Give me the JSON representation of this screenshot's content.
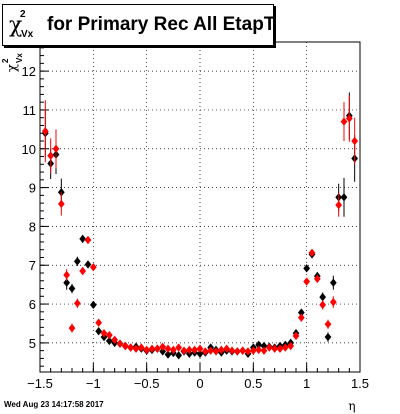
{
  "title": {
    "symbol": "χ",
    "superscript": "2",
    "subscript": "Vx",
    "text": "for Primary Rec All EtapT"
  },
  "footer": "Wed Aug 23 14:17:58 2017",
  "colors": {
    "series_black": "#000000",
    "series_red": "#ff0000",
    "grid": "#000000",
    "background": "#ffffff"
  },
  "chart_data": {
    "type": "scatter",
    "title": "χ2 Vx for Primary Rec All EtapT",
    "xlabel": "η",
    "ylabel": "χ2 Vx",
    "xlim": [
      -1.5,
      1.5
    ],
    "ylim": [
      4.25,
      12.75
    ],
    "xticks": [
      -1.5,
      -1,
      -0.5,
      0,
      0.5,
      1,
      1.5
    ],
    "xtick_labels": [
      "−1.5",
      "−1",
      "−0.5",
      "0",
      "0.5",
      "1",
      "1.5"
    ],
    "yticks": [
      5,
      6,
      7,
      8,
      9,
      10,
      11,
      12
    ],
    "ytick_labels": [
      "5",
      "6",
      "7",
      "8",
      "9",
      "10",
      "11",
      "12"
    ],
    "grid": true,
    "series": [
      {
        "color": "#000000",
        "x": [
          -1.45,
          -1.4,
          -1.35,
          -1.3,
          -1.25,
          -1.2,
          -1.15,
          -1.1,
          -1.05,
          -1.0,
          -0.95,
          -0.9,
          -0.85,
          -0.8,
          -0.75,
          -0.7,
          -0.65,
          -0.6,
          -0.55,
          -0.5,
          -0.45,
          -0.4,
          -0.35,
          -0.3,
          -0.25,
          -0.2,
          -0.15,
          -0.1,
          -0.05,
          0.0,
          0.05,
          0.1,
          0.15,
          0.2,
          0.25,
          0.3,
          0.35,
          0.4,
          0.45,
          0.5,
          0.55,
          0.6,
          0.65,
          0.7,
          0.75,
          0.8,
          0.85,
          0.9,
          0.95,
          1.0,
          1.05,
          1.1,
          1.15,
          1.2,
          1.25,
          1.3,
          1.35,
          1.4,
          1.45
        ],
        "y": [
          10.4,
          9.62,
          9.85,
          8.88,
          6.55,
          6.4,
          7.1,
          7.68,
          7.02,
          5.98,
          5.3,
          5.15,
          5.05,
          5.0,
          4.98,
          4.92,
          4.88,
          4.9,
          4.85,
          4.8,
          4.82,
          4.85,
          4.78,
          4.7,
          4.74,
          4.68,
          4.78,
          4.72,
          4.75,
          4.72,
          4.75,
          4.88,
          4.82,
          4.75,
          4.8,
          4.78,
          4.78,
          4.8,
          4.72,
          4.88,
          4.95,
          4.92,
          4.9,
          4.88,
          4.92,
          4.95,
          5.0,
          5.25,
          5.78,
          6.92,
          7.28,
          6.72,
          6.18,
          5.15,
          6.55,
          8.75,
          8.75,
          10.85,
          9.75
        ],
        "yerr": [
          0.6,
          0.4,
          0.5,
          0.35,
          0.18,
          0.12,
          0.12,
          0.1,
          0.08,
          0.06,
          0.05,
          0.04,
          0.04,
          0.03,
          0.03,
          0.03,
          0.03,
          0.03,
          0.03,
          0.03,
          0.03,
          0.03,
          0.03,
          0.03,
          0.03,
          0.03,
          0.03,
          0.03,
          0.03,
          0.03,
          0.03,
          0.03,
          0.03,
          0.03,
          0.03,
          0.03,
          0.03,
          0.03,
          0.03,
          0.03,
          0.03,
          0.03,
          0.03,
          0.03,
          0.03,
          0.03,
          0.04,
          0.04,
          0.05,
          0.06,
          0.08,
          0.1,
          0.12,
          0.12,
          0.18,
          0.35,
          0.5,
          0.6,
          0.6
        ]
      },
      {
        "color": "#ff0000",
        "x": [
          -1.45,
          -1.4,
          -1.35,
          -1.3,
          -1.25,
          -1.2,
          -1.15,
          -1.1,
          -1.05,
          -1.0,
          -0.95,
          -0.9,
          -0.85,
          -0.8,
          -0.75,
          -0.7,
          -0.65,
          -0.6,
          -0.55,
          -0.5,
          -0.45,
          -0.4,
          -0.35,
          -0.3,
          -0.25,
          -0.2,
          -0.15,
          -0.1,
          -0.05,
          0.0,
          0.05,
          0.1,
          0.15,
          0.2,
          0.25,
          0.3,
          0.35,
          0.4,
          0.45,
          0.5,
          0.55,
          0.6,
          0.65,
          0.7,
          0.75,
          0.8,
          0.85,
          0.9,
          0.95,
          1.0,
          1.05,
          1.1,
          1.15,
          1.2,
          1.25,
          1.3,
          1.35,
          1.4,
          1.45
        ],
        "y": [
          10.45,
          9.82,
          10.0,
          8.58,
          6.75,
          5.38,
          6.02,
          6.85,
          7.65,
          6.95,
          5.52,
          5.25,
          5.2,
          5.08,
          4.98,
          4.92,
          4.88,
          4.85,
          4.88,
          4.82,
          4.85,
          4.85,
          4.9,
          4.85,
          4.82,
          4.88,
          4.8,
          4.82,
          4.82,
          4.85,
          4.78,
          4.8,
          4.78,
          4.82,
          4.85,
          4.8,
          4.78,
          4.8,
          4.78,
          4.8,
          4.82,
          4.8,
          4.88,
          4.85,
          4.85,
          4.88,
          4.92,
          5.18,
          5.65,
          6.58,
          7.32,
          6.65,
          5.98,
          5.48,
          6.05,
          8.55,
          10.7,
          10.78,
          10.2
        ],
        "yerr": [
          0.8,
          0.45,
          0.5,
          0.3,
          0.15,
          0.12,
          0.12,
          0.1,
          0.08,
          0.06,
          0.05,
          0.04,
          0.04,
          0.03,
          0.03,
          0.03,
          0.03,
          0.03,
          0.03,
          0.03,
          0.03,
          0.03,
          0.03,
          0.03,
          0.03,
          0.03,
          0.03,
          0.03,
          0.03,
          0.03,
          0.03,
          0.03,
          0.03,
          0.03,
          0.03,
          0.03,
          0.03,
          0.03,
          0.03,
          0.03,
          0.03,
          0.03,
          0.03,
          0.03,
          0.03,
          0.03,
          0.04,
          0.04,
          0.05,
          0.06,
          0.08,
          0.1,
          0.12,
          0.12,
          0.15,
          0.3,
          0.5,
          0.6,
          0.6
        ]
      }
    ]
  }
}
